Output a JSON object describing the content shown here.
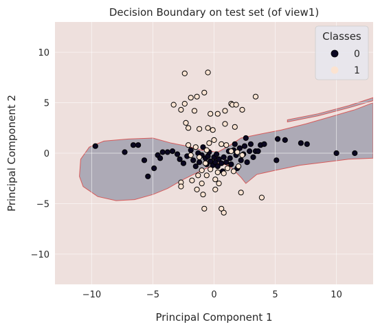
{
  "chart_data": {
    "type": "scatter",
    "title": "Decision Boundary on test set (of view1)",
    "xlabel": "Principal Component 1",
    "ylabel": "Principal Component 2",
    "xlim": [
      -13,
      13
    ],
    "ylim": [
      -13,
      13
    ],
    "xticks": [
      -10,
      -5,
      0,
      5,
      10
    ],
    "yticks": [
      -10,
      -5,
      0,
      5,
      10
    ],
    "xtick_labels": [
      "−10",
      "−5",
      "0",
      "5",
      "10"
    ],
    "ytick_labels": [
      "−10",
      "−5",
      "0",
      "5",
      "10"
    ],
    "grid": true,
    "legend": {
      "title": "Classes",
      "position": "top-right",
      "entries": [
        {
          "label": "0",
          "color": "#0b0721"
        },
        {
          "label": "1",
          "color": "#fbe3d1"
        }
      ]
    },
    "colors": {
      "background_region": "#eee0dd",
      "class0_region": "#adaab6",
      "boundary_line": "#d65a5a",
      "class0_point": "#0b0721",
      "class1_point": "#fbe3d1"
    },
    "decision_region_class0": [
      [
        -11.0,
        -2.3
      ],
      [
        -10.9,
        -0.6
      ],
      [
        -10.2,
        0.6
      ],
      [
        -9.0,
        1.2
      ],
      [
        -7.0,
        1.4
      ],
      [
        -5.0,
        1.5
      ],
      [
        -3.5,
        1.0
      ],
      [
        -2.2,
        0.7
      ],
      [
        -1.0,
        0.3
      ],
      [
        0.3,
        0.1
      ],
      [
        1.2,
        0.7
      ],
      [
        2.2,
        1.5
      ],
      [
        3.8,
        1.9
      ],
      [
        5.5,
        2.3
      ],
      [
        7.5,
        2.9
      ],
      [
        9.5,
        3.6
      ],
      [
        11.5,
        4.3
      ],
      [
        13.0,
        5.0
      ],
      [
        13.0,
        -0.5
      ],
      [
        11.0,
        -0.6
      ],
      [
        9.0,
        -0.9
      ],
      [
        7.0,
        -1.2
      ],
      [
        5.0,
        -1.7
      ],
      [
        3.5,
        -2.1
      ],
      [
        2.6,
        -3.0
      ],
      [
        2.2,
        -2.4
      ],
      [
        1.2,
        -1.2
      ],
      [
        0.3,
        -1.0
      ],
      [
        -1.0,
        -1.7
      ],
      [
        -2.5,
        -2.6
      ],
      [
        -3.8,
        -3.5
      ],
      [
        -5.0,
        -4.1
      ],
      [
        -6.5,
        -4.6
      ],
      [
        -8.0,
        -4.7
      ],
      [
        -9.5,
        -4.3
      ],
      [
        -10.7,
        -3.3
      ]
    ],
    "decision_region_class0_sliver": [
      [
        6.0,
        3.3
      ],
      [
        8.5,
        3.9
      ],
      [
        11.0,
        4.7
      ],
      [
        13.0,
        5.5
      ],
      [
        13.0,
        5.2
      ],
      [
        11.0,
        4.5
      ],
      [
        8.5,
        3.7
      ],
      [
        6.0,
        3.1
      ]
    ],
    "series": [
      {
        "name": "0",
        "points": [
          [
            -9.7,
            0.7
          ],
          [
            -7.3,
            0.1
          ],
          [
            -6.6,
            0.8
          ],
          [
            -6.2,
            0.8
          ],
          [
            -5.7,
            -0.7
          ],
          [
            -5.4,
            -2.3
          ],
          [
            -4.9,
            -1.5
          ],
          [
            -4.6,
            -0.2
          ],
          [
            -4.4,
            -0.5
          ],
          [
            -4.2,
            0.1
          ],
          [
            -3.8,
            0.1
          ],
          [
            -3.4,
            0.2
          ],
          [
            -3.0,
            -0.1
          ],
          [
            -2.8,
            -0.6
          ],
          [
            -2.5,
            -1.0
          ],
          [
            -2.2,
            -0.3
          ],
          [
            -1.9,
            0.3
          ],
          [
            -1.7,
            -0.7
          ],
          [
            -1.5,
            -1.3
          ],
          [
            -1.3,
            0.0
          ],
          [
            -1.2,
            -0.9
          ],
          [
            -1.0,
            -0.2
          ],
          [
            -0.9,
            0.6
          ],
          [
            -0.7,
            -0.5
          ],
          [
            -0.6,
            -1.1
          ],
          [
            -0.5,
            -0.3
          ],
          [
            -0.4,
            0.1
          ],
          [
            -0.3,
            -0.8
          ],
          [
            -0.1,
            -1.2
          ],
          [
            0.0,
            -0.4
          ],
          [
            0.1,
            -0.9
          ],
          [
            0.2,
            -0.1
          ],
          [
            0.3,
            -1.3
          ],
          [
            0.4,
            -0.6
          ],
          [
            0.6,
            -1.0
          ],
          [
            0.7,
            -1.8
          ],
          [
            0.8,
            -0.4
          ],
          [
            1.0,
            -0.9
          ],
          [
            1.2,
            0.2
          ],
          [
            1.3,
            -0.5
          ],
          [
            1.4,
            -1.1
          ],
          [
            1.6,
            0.3
          ],
          [
            1.8,
            -0.2
          ],
          [
            1.9,
            -1.5
          ],
          [
            2.1,
            0.5
          ],
          [
            2.2,
            -0.7
          ],
          [
            2.4,
            -0.1
          ],
          [
            2.5,
            0.7
          ],
          [
            2.7,
            -0.9
          ],
          [
            2.9,
            0.2
          ],
          [
            3.0,
            0.9
          ],
          [
            3.2,
            -0.4
          ],
          [
            3.4,
            0.2
          ],
          [
            3.6,
            0.2
          ],
          [
            3.8,
            0.8
          ],
          [
            4.1,
            0.9
          ],
          [
            5.2,
            1.4
          ],
          [
            5.1,
            -0.7
          ],
          [
            5.8,
            1.3
          ],
          [
            7.1,
            1.0
          ],
          [
            7.6,
            0.9
          ],
          [
            10.0,
            0.0
          ],
          [
            11.5,
            0.0
          ],
          [
            2.6,
            1.5
          ],
          [
            1.7,
            0.9
          ]
        ]
      },
      {
        "name": "1",
        "points": [
          [
            -2.4,
            7.9
          ],
          [
            -0.5,
            8.0
          ],
          [
            -0.8,
            6.0
          ],
          [
            -1.9,
            5.5
          ],
          [
            -1.4,
            5.6
          ],
          [
            -2.4,
            4.9
          ],
          [
            -3.3,
            4.8
          ],
          [
            -2.7,
            4.3
          ],
          [
            -1.6,
            4.2
          ],
          [
            -0.3,
            3.9
          ],
          [
            0.3,
            3.9
          ],
          [
            0.9,
            4.2
          ],
          [
            1.4,
            4.9
          ],
          [
            1.5,
            4.8
          ],
          [
            1.8,
            4.8
          ],
          [
            2.3,
            4.3
          ],
          [
            3.4,
            5.6
          ],
          [
            -2.3,
            3.0
          ],
          [
            -2.1,
            2.5
          ],
          [
            -1.2,
            2.4
          ],
          [
            -0.5,
            2.5
          ],
          [
            -0.1,
            2.3
          ],
          [
            0.9,
            2.9
          ],
          [
            1.7,
            2.6
          ],
          [
            -2.1,
            0.8
          ],
          [
            -1.5,
            0.6
          ],
          [
            -0.6,
            0.3
          ],
          [
            0.6,
            0.9
          ],
          [
            1.0,
            0.8
          ],
          [
            1.4,
            0.2
          ],
          [
            -1.9,
            -0.2
          ],
          [
            -1.2,
            -0.4
          ],
          [
            -0.7,
            -1.0
          ],
          [
            -0.3,
            -1.6
          ],
          [
            0.3,
            -1.9
          ],
          [
            1.1,
            -1.5
          ],
          [
            1.6,
            -1.8
          ],
          [
            2.0,
            -1.3
          ],
          [
            -2.7,
            -2.9
          ],
          [
            -2.7,
            -3.3
          ],
          [
            -1.8,
            -2.7
          ],
          [
            -1.3,
            -2.2
          ],
          [
            -1.0,
            -3.0
          ],
          [
            -0.6,
            -2.2
          ],
          [
            0.1,
            -2.6
          ],
          [
            0.4,
            -3.0
          ],
          [
            0.8,
            -2.0
          ],
          [
            -1.4,
            -3.6
          ],
          [
            -0.9,
            -4.1
          ],
          [
            0.1,
            -3.6
          ],
          [
            2.2,
            -3.9
          ],
          [
            3.9,
            -4.4
          ],
          [
            -0.8,
            -5.5
          ],
          [
            0.6,
            -5.5
          ],
          [
            0.8,
            -5.9
          ],
          [
            -1.0,
            -1.7
          ],
          [
            0.0,
            1.3
          ],
          [
            -0.4,
            1.0
          ],
          [
            1.9,
            0.1
          ],
          [
            2.3,
            -0.2
          ]
        ]
      }
    ]
  }
}
